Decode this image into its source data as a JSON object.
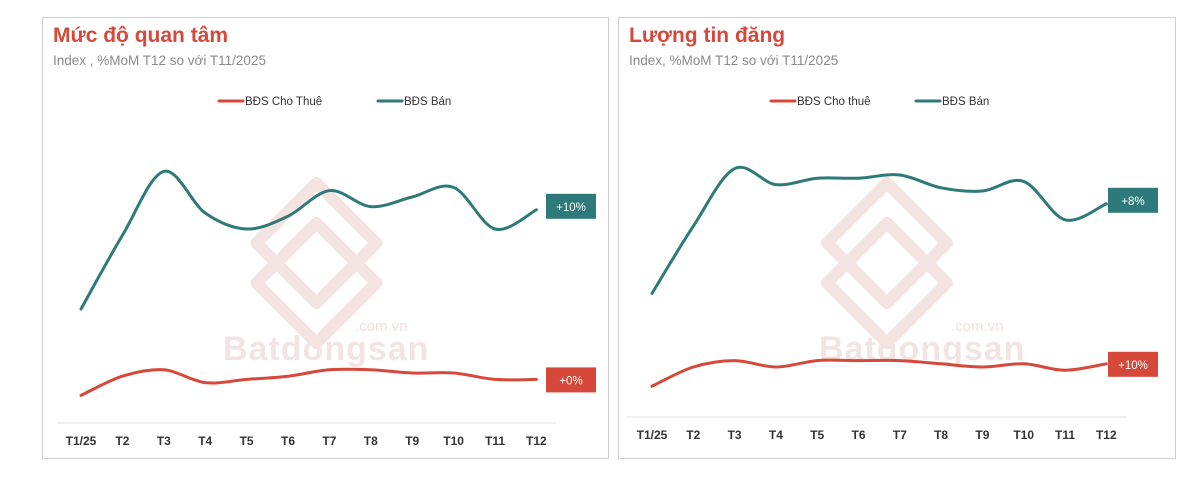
{
  "chart_data": [
    {
      "type": "line",
      "title": "Mức độ quan tâm",
      "subtitle": "Index , %MoM T12 so với T11/2025",
      "categories": [
        "T1/25",
        "T2",
        "T3",
        "T4",
        "T5",
        "T6",
        "T7",
        "T8",
        "T9",
        "T10",
        "T11",
        "T12"
      ],
      "series": [
        {
          "name": "BĐS Cho Thuê",
          "color": "#d6493a",
          "values": [
            8,
            14,
            16,
            12,
            13,
            14,
            16,
            16,
            15,
            15,
            13,
            13
          ],
          "end_label": "+0%"
        },
        {
          "name": "BĐS Bán",
          "color": "#2e7a7b",
          "values": [
            35,
            58,
            78,
            65,
            60,
            64,
            72,
            67,
            70,
            73,
            60,
            66
          ],
          "end_label": "+10%"
        }
      ],
      "ylim": [
        0,
        100
      ],
      "grid": false,
      "legend": "top-center",
      "watermark": "Batdongsan .com.vn"
    },
    {
      "type": "line",
      "title": "Lượng tin đăng",
      "subtitle": "Index, %MoM T12 so với T11/2025",
      "categories": [
        "T1/25",
        "T2",
        "T3",
        "T4",
        "T5",
        "T6",
        "T7",
        "T8",
        "T9",
        "T10",
        "T11",
        "T12"
      ],
      "series": [
        {
          "name": "BĐS Cho thuê",
          "color": "#d6493a",
          "values": [
            9,
            15,
            17,
            15,
            17,
            17,
            17,
            16,
            15,
            16,
            14,
            16
          ],
          "end_label": "+10%"
        },
        {
          "name": "BĐS Bán",
          "color": "#2e7a7b",
          "values": [
            38,
            59,
            77,
            72,
            74,
            74,
            75,
            71,
            70,
            73,
            61,
            66
          ],
          "end_label": "+8%"
        }
      ],
      "ylim": [
        0,
        100
      ],
      "grid": false,
      "legend": "top-center",
      "watermark": "Batdongsan .com.vn"
    }
  ]
}
